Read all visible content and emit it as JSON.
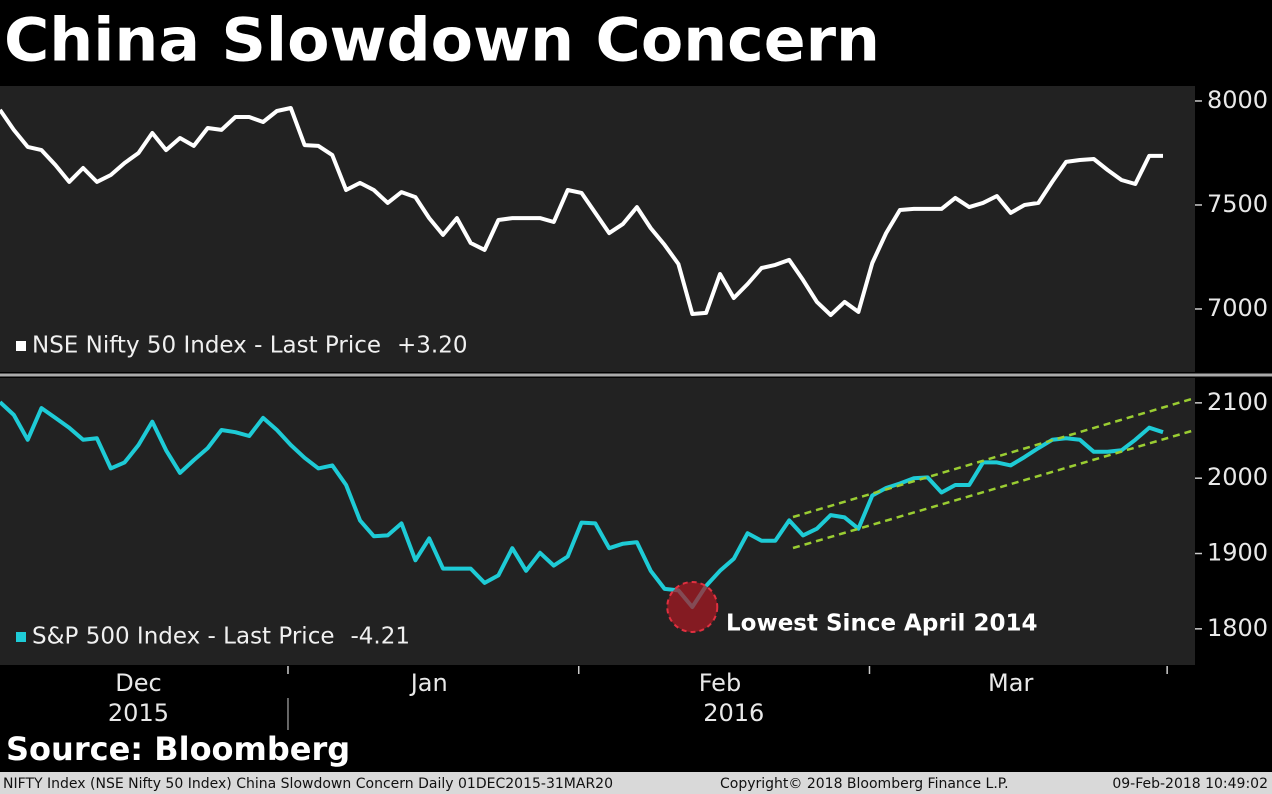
{
  "chart_data": {
    "type": "line",
    "title": "China Slowdown Concern",
    "categories": [
      null,
      null,
      null,
      null,
      null,
      null,
      null,
      null,
      null,
      null,
      "Dec",
      null,
      null,
      null,
      null,
      null,
      null,
      null,
      null,
      null,
      null,
      null,
      null,
      null,
      null,
      null,
      null,
      null,
      null,
      null,
      null,
      "Jan",
      null,
      null,
      null,
      null,
      null,
      null,
      null,
      null,
      null,
      null,
      null,
      null,
      null,
      null,
      null,
      null,
      null,
      null,
      null,
      null,
      "Feb",
      null,
      null,
      null,
      null,
      null,
      null,
      null,
      null,
      null,
      null,
      null,
      null,
      null,
      null,
      null,
      null,
      null,
      null,
      null,
      null,
      "Mar",
      null,
      null,
      null,
      null,
      null,
      null,
      null,
      null,
      null,
      null,
      null
    ],
    "year_labels": [
      null,
      null,
      null,
      null,
      null,
      null,
      null,
      null,
      null,
      null,
      "2015",
      null,
      null,
      null,
      null,
      null,
      null,
      null,
      null,
      null,
      null,
      null,
      null,
      null,
      null,
      null,
      null,
      null,
      null,
      null,
      null,
      null,
      null,
      null,
      null,
      null,
      null,
      null,
      null,
      null,
      null,
      null,
      null,
      null,
      null,
      null,
      null,
      null,
      null,
      null,
      null,
      null,
      null,
      "2016",
      null,
      null,
      null,
      null,
      null,
      null,
      null,
      null,
      null,
      null,
      null,
      null,
      null,
      null,
      null,
      null,
      null,
      null,
      null,
      null,
      null,
      null,
      null,
      null,
      null,
      null,
      null,
      null,
      null,
      null,
      null
    ],
    "panels": [
      {
        "ylim": [
          6697,
          8072
        ],
        "yticks": [
          7000,
          7500,
          8000
        ],
        "series": [
          {
            "name": "NSE Nifty 50 Index - Last Price",
            "change": "+3.20",
            "color": "#ffffff",
            "values": [
              7957,
              7861,
              7779,
              7764,
              7692,
              7611,
              7678,
              7611,
              7644,
              7702,
              7750,
              7846,
              7764,
              7822,
              7784,
              7870,
              7861,
              7923,
              7923,
              7899,
              7952,
              7966,
              7788,
              7784,
              7740,
              7572,
              7606,
              7572,
              7510,
              7562,
              7538,
              7437,
              7356,
              7437,
              7317,
              7284,
              7428,
              7437,
              7437,
              7437,
              7418,
              7572,
              7558,
              7462,
              7365,
              7409,
              7490,
              7389,
              7308,
              7216,
              6976,
              6981,
              7168,
              7053,
              7120,
              7197,
              7212,
              7236,
              7140,
              7034,
              6971,
              7034,
              6986,
              7221,
              7365,
              7476,
              7481,
              7481,
              7481,
              7534,
              7490,
              7510,
              7543,
              7462,
              7500,
              7510,
              7611,
              7707,
              7716,
              7721,
              7668,
              7620,
              7601,
              7736,
              7736
            ]
          }
        ]
      },
      {
        "ylim": [
          1752,
          2133
        ],
        "yticks": [
          1800,
          1900,
          2000,
          2100
        ],
        "annotation": "Lowest Since April 2014",
        "series": [
          {
            "name": "S&P 500 Index - Last Price",
            "change": "-4.21",
            "color": "#1ecbd6",
            "values": [
              2101,
              2084,
              2051,
              2093,
              2080,
              2067,
              2051,
              2053,
              2013,
              2021,
              2044,
              2075,
              2037,
              2007,
              2024,
              2040,
              2064,
              2061,
              2056,
              2080,
              2064,
              2044,
              2027,
              2013,
              2017,
              1991,
              1944,
              1923,
              1924,
              1940,
              1891,
              1920,
              1880,
              1880,
              1880,
              1861,
              1871,
              1907,
              1877,
              1901,
              1884,
              1896,
              1941,
              1940,
              1907,
              1913,
              1915,
              1877,
              1853,
              1851,
              1829,
              1857,
              1877,
              1893,
              1927,
              1917,
              1917,
              1944,
              1924,
              1933,
              1951,
              1948,
              1933,
              1977,
              1987,
              1993,
              2000,
              2001,
              1981,
              1991,
              1991,
              2021,
              2021,
              2017,
              2028,
              2040,
              2051,
              2053,
              2051,
              2035,
              2035,
              2037,
              2051,
              2067,
              2061
            ]
          }
        ]
      }
    ],
    "source": "Source: Bloomberg",
    "footer": {
      "description": "NIFTY Index (NSE Nifty 50 Index) China Slowdown Concern  Daily 01DEC2015-31MAR20",
      "copyright": "Copyright© 2018 Bloomberg Finance L.P.",
      "timestamp": "09-Feb-2018 10:49:02"
    }
  }
}
